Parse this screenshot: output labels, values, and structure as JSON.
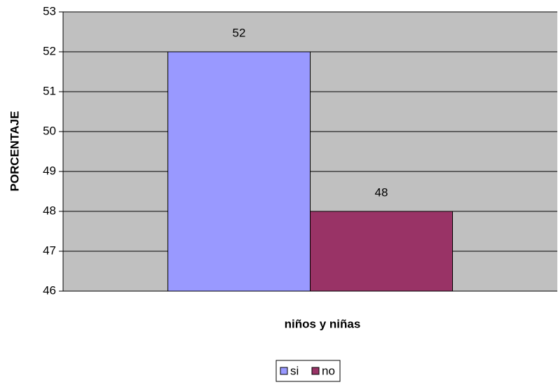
{
  "chart_data": {
    "type": "bar",
    "categories": [
      null
    ],
    "series": [
      {
        "name": "si",
        "color": "#9999ff",
        "values": [
          52
        ]
      },
      {
        "name": "no",
        "color": "#993366",
        "values": [
          48
        ]
      }
    ],
    "xlabel": "niños y niñas",
    "ylabel": "PORCENTAJE",
    "ylim": [
      46,
      53
    ],
    "yticks": [
      46,
      47,
      48,
      49,
      50,
      51,
      52,
      53
    ],
    "grid": true,
    "legend": "bottom"
  }
}
